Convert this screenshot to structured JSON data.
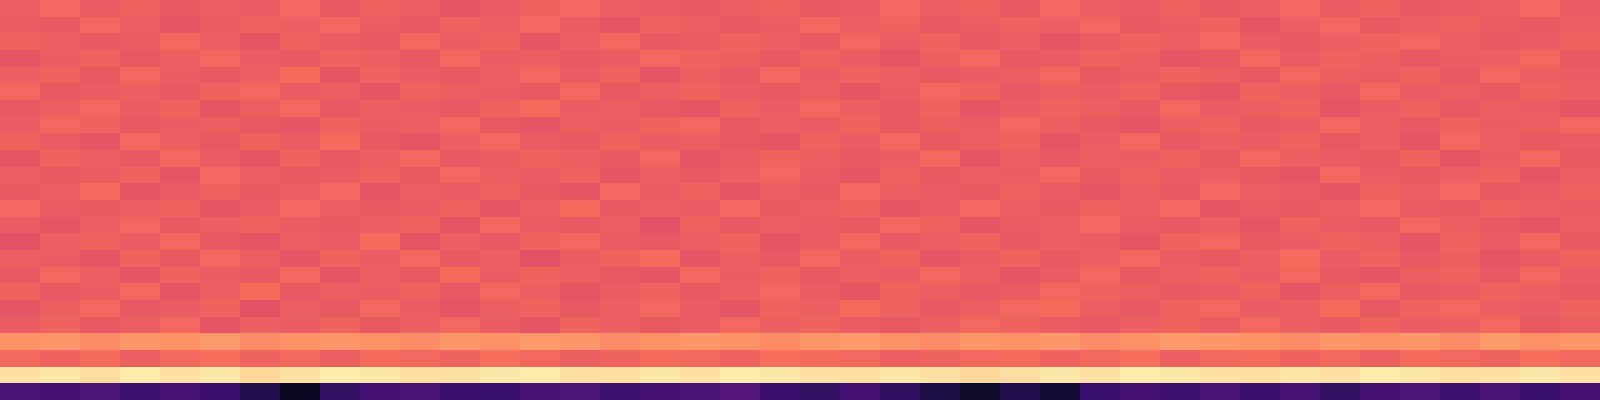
{
  "chart_data": {
    "type": "heatmap",
    "color": "magma",
    "tick_labels": false,
    "zlim": [
      0,
      100
    ],
    "cells": [
      [
        24,
        22,
        25,
        21,
        23,
        20,
        14,
        6,
        18,
        22,
        24,
        20,
        19,
        23,
        25,
        21,
        22,
        24,
        26,
        20,
        18,
        22,
        17,
        12,
        8,
        14,
        10,
        19,
        22,
        21,
        24,
        20,
        23,
        18,
        22,
        25,
        21,
        24,
        19,
        22
      ],
      [
        94,
        95,
        93,
        96,
        94,
        95,
        92,
        94,
        96,
        95,
        93,
        94,
        95,
        96,
        94,
        93,
        95,
        94,
        96,
        95,
        94,
        93,
        95,
        94,
        92,
        93,
        95,
        94,
        96,
        95,
        94,
        93,
        95,
        94,
        96,
        95,
        93,
        94,
        95,
        94
      ],
      [
        68,
        67,
        69,
        66,
        68,
        70,
        67,
        68,
        66,
        69,
        68,
        67,
        70,
        68,
        66,
        67,
        69,
        68,
        67,
        70,
        69,
        68,
        66,
        67,
        68,
        69,
        67,
        68,
        70,
        66,
        68,
        69,
        67,
        68,
        66,
        69,
        68,
        67,
        70,
        68
      ],
      [
        77,
        78,
        76,
        78,
        77,
        79,
        76,
        77,
        78,
        77,
        76,
        78,
        77,
        79,
        78,
        76,
        77,
        78,
        77,
        76,
        78,
        79,
        77,
        76,
        78,
        77,
        78,
        76,
        77,
        79,
        78,
        77,
        76,
        78,
        77,
        78,
        76,
        79,
        77,
        78
      ],
      [
        65,
        67,
        64,
        66,
        68,
        63,
        66,
        65,
        67,
        64,
        66,
        68,
        65,
        63,
        67,
        66,
        64,
        65,
        68,
        66,
        67,
        65,
        64,
        66,
        68,
        67,
        65,
        64,
        66,
        67,
        65,
        68,
        66,
        64,
        67,
        65,
        66,
        68,
        64,
        66
      ],
      [
        63,
        66,
        68,
        64,
        65,
        67,
        62,
        66,
        64,
        68,
        65,
        63,
        66,
        67,
        64,
        66,
        68,
        65,
        63,
        67,
        66,
        69,
        67,
        64,
        66,
        68,
        69,
        66,
        64,
        67,
        68,
        65,
        66,
        69,
        64,
        67,
        68,
        66,
        65,
        67
      ],
      [
        67,
        64,
        65,
        68,
        63,
        66,
        69,
        64,
        66,
        65,
        67,
        64,
        68,
        66,
        63,
        65,
        67,
        64,
        66,
        68,
        65,
        63,
        67,
        66,
        64,
        65,
        68,
        67,
        66,
        64,
        65,
        67,
        63,
        66,
        68,
        64,
        65,
        67,
        66,
        64
      ],
      [
        64,
        68,
        66,
        63,
        67,
        65,
        64,
        68,
        63,
        66,
        64,
        69,
        65,
        67,
        66,
        64,
        63,
        68,
        65,
        67,
        64,
        66,
        65,
        68,
        66,
        63,
        65,
        68,
        64,
        66,
        67,
        65,
        68,
        64,
        63,
        66,
        67,
        64,
        68,
        65
      ],
      [
        66,
        65,
        63,
        67,
        64,
        68,
        66,
        63,
        67,
        65,
        68,
        64,
        66,
        62,
        65,
        67,
        69,
        63,
        66,
        64,
        68,
        65,
        67,
        63,
        65,
        67,
        64,
        66,
        68,
        65,
        64,
        66,
        69,
        65,
        67,
        64,
        66,
        63,
        65,
        67
      ],
      [
        62,
        66,
        67,
        65,
        68,
        64,
        63,
        66,
        65,
        69,
        63,
        66,
        64,
        67,
        68,
        65,
        64,
        66,
        67,
        63,
        65,
        68,
        64,
        66,
        67,
        64,
        66,
        65,
        63,
        67,
        68,
        64,
        65,
        67,
        66,
        63,
        67,
        65,
        68,
        64
      ],
      [
        65,
        63,
        66,
        68,
        64,
        66,
        67,
        65,
        64,
        66,
        67,
        63,
        68,
        65,
        64,
        66,
        62,
        67,
        64,
        66,
        65,
        64,
        68,
        67,
        63,
        65,
        66,
        68,
        65,
        64,
        66,
        63,
        67,
        65,
        64,
        68,
        66,
        64,
        63,
        66
      ],
      [
        68,
        65,
        64,
        66,
        67,
        63,
        65,
        68,
        66,
        64,
        65,
        67,
        63,
        66,
        69,
        64,
        66,
        65,
        68,
        64,
        66,
        67,
        63,
        65,
        68,
        66,
        64,
        67,
        66,
        68,
        63,
        65,
        64,
        66,
        68,
        65,
        64,
        67,
        66,
        65
      ],
      [
        64,
        66,
        69,
        63,
        65,
        67,
        64,
        66,
        68,
        63,
        66,
        65,
        67,
        64,
        63,
        68,
        65,
        67,
        63,
        66,
        64,
        68,
        66,
        65,
        64,
        67,
        65,
        63,
        66,
        64,
        68,
        66,
        65,
        63,
        67,
        66,
        68,
        64,
        65,
        67
      ],
      [
        66,
        64,
        65,
        67,
        63,
        68,
        66,
        64,
        65,
        67,
        64,
        68,
        66,
        65,
        67,
        63,
        66,
        64,
        66,
        68,
        65,
        63,
        67,
        64,
        66,
        65,
        68,
        64,
        67,
        65,
        66,
        64,
        63,
        68,
        65,
        64,
        66,
        67,
        63,
        66
      ],
      [
        63,
        67,
        66,
        64,
        68,
        65,
        63,
        67,
        64,
        66,
        68,
        64,
        65,
        67,
        66,
        64,
        68,
        63,
        65,
        67,
        66,
        64,
        65,
        68,
        63,
        66,
        64,
        66,
        65,
        67,
        64,
        68,
        66,
        65,
        64,
        67,
        63,
        65,
        68,
        64
      ],
      [
        67,
        65,
        63,
        68,
        66,
        64,
        67,
        65,
        69,
        64,
        63,
        66,
        68,
        65,
        64,
        67,
        65,
        66,
        64,
        63,
        67,
        65,
        68,
        64,
        66,
        67,
        63,
        65,
        68,
        64,
        66,
        65,
        67,
        64,
        66,
        63,
        68,
        66,
        64,
        65
      ],
      [
        65,
        68,
        67,
        64,
        65,
        66,
        64,
        63,
        67,
        65,
        66,
        68,
        64,
        63,
        66,
        65,
        67,
        68,
        64,
        66,
        65,
        67,
        64,
        66,
        65,
        68,
        66,
        64,
        63,
        66,
        67,
        64,
        65,
        68,
        66,
        64,
        67,
        65,
        66,
        68
      ],
      [
        64,
        66,
        68,
        65,
        67,
        63,
        66,
        68,
        64,
        66,
        65,
        64,
        67,
        69,
        65,
        66,
        64,
        63,
        67,
        65,
        68,
        66,
        64,
        67,
        63,
        65,
        67,
        66,
        64,
        68,
        65,
        66,
        67,
        63,
        65,
        67,
        64,
        66,
        65,
        63
      ],
      [
        68,
        64,
        65,
        66,
        64,
        67,
        68,
        65,
        66,
        63,
        67,
        66,
        65,
        64,
        68,
        64,
        66,
        67,
        65,
        64,
        66,
        63,
        65,
        68,
        67,
        64,
        66,
        65,
        67,
        64,
        63,
        67,
        66,
        64,
        68,
        65,
        66,
        64,
        67,
        66
      ],
      [
        66,
        67,
        64,
        68,
        65,
        64,
        66,
        69,
        63,
        67,
        65,
        64,
        66,
        68,
        65,
        67,
        63,
        66,
        64,
        68,
        65,
        67,
        66,
        64,
        65,
        66,
        68,
        64,
        65,
        67,
        66,
        64,
        68,
        66,
        65,
        67,
        64,
        68,
        66,
        65
      ],
      [
        63,
        65,
        67,
        64,
        66,
        68,
        65,
        64,
        67,
        66,
        64,
        68,
        65,
        66,
        64,
        65,
        68,
        67,
        66,
        64,
        67,
        65,
        63,
        66,
        68,
        64,
        65,
        67,
        66,
        63,
        64,
        68,
        65,
        67,
        66,
        64,
        65,
        66,
        68,
        64
      ],
      [
        67,
        66,
        64,
        65,
        68,
        66,
        63,
        67,
        65,
        64,
        68,
        65,
        67,
        63,
        66,
        68,
        64,
        65,
        67,
        66,
        64,
        68,
        65,
        67,
        64,
        66,
        63,
        65,
        67,
        66,
        68,
        65,
        64,
        66,
        67,
        68,
        66,
        64,
        65,
        67
      ],
      [
        65,
        64,
        68,
        66,
        63,
        65,
        67,
        66,
        68,
        65,
        64,
        67,
        66,
        68,
        65,
        63,
        67,
        66,
        64,
        65,
        68,
        66,
        67,
        64,
        65,
        67,
        66,
        68,
        64,
        65,
        67,
        63,
        66,
        68,
        64,
        66,
        67,
        65,
        64,
        66
      ],
      [
        66,
        68,
        65,
        67,
        64,
        66,
        65,
        68,
        64,
        67,
        66,
        63,
        65,
        67,
        68,
        66,
        65,
        64,
        66,
        67,
        64,
        65,
        68,
        66,
        67,
        64,
        68,
        66,
        65,
        67,
        64,
        66,
        68,
        65,
        67,
        64,
        65,
        66,
        68,
        65
      ]
    ]
  }
}
